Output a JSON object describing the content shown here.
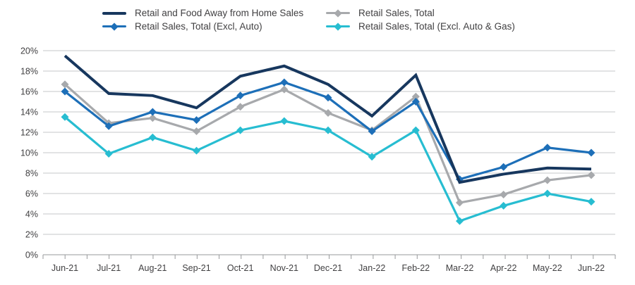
{
  "chart_data": {
    "type": "line",
    "title": "",
    "xlabel": "",
    "ylabel": "",
    "x": [
      "Jun-21",
      "Jul-21",
      "Aug-21",
      "Sep-21",
      "Oct-21",
      "Nov-21",
      "Dec-21",
      "Jan-22",
      "Feb-22",
      "Mar-22",
      "Apr-22",
      "May-22",
      "Jun-22"
    ],
    "series": [
      {
        "name": "Retail and Food Away from Home Sales",
        "color": "#17375e",
        "marker": "none",
        "width": 4,
        "values": [
          19.5,
          15.8,
          15.6,
          14.4,
          17.5,
          18.5,
          16.7,
          13.6,
          17.6,
          7.1,
          7.9,
          8.5,
          8.4
        ]
      },
      {
        "name": "Retail Sales, Total (Excl, Auto)",
        "color": "#1d6fb8",
        "marker": "diamond",
        "width": 3.2,
        "values": [
          16.0,
          12.6,
          14.0,
          13.2,
          15.6,
          16.9,
          15.4,
          12.1,
          15.0,
          7.4,
          8.6,
          10.5,
          10.0
        ]
      },
      {
        "name": "Retail Sales, Total",
        "color": "#a7a9ac",
        "marker": "diamond",
        "width": 3.2,
        "values": [
          16.7,
          12.9,
          13.4,
          12.1,
          14.5,
          16.2,
          13.9,
          12.2,
          15.5,
          5.1,
          5.9,
          7.3,
          7.8
        ]
      },
      {
        "name": "Retail Sales, Total (Excl. Auto & Gas)",
        "color": "#27bdd1",
        "marker": "diamond",
        "width": 3.2,
        "values": [
          13.5,
          9.9,
          11.5,
          10.2,
          12.2,
          13.1,
          12.2,
          9.6,
          12.2,
          3.3,
          4.8,
          6.0,
          5.2
        ]
      }
    ],
    "ylim": [
      0,
      20
    ],
    "ytick_step": 2,
    "ytick_suffix": "%",
    "grid": "horizontal",
    "legend_position": "top",
    "draw_order": [
      2,
      3,
      1,
      0
    ],
    "colors": {
      "grid": "#c6c7c8",
      "axis": "#97999b",
      "tick_label": "#414042",
      "legend_text": "#414042"
    }
  }
}
